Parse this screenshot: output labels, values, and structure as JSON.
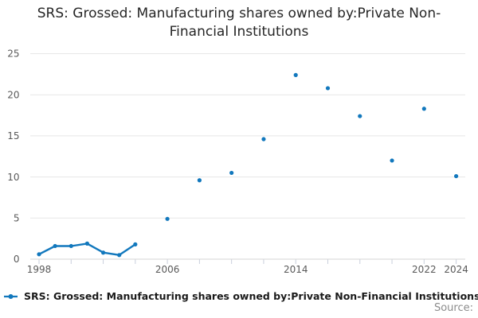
{
  "page": {
    "title": "SRS: Grossed: Manufacturing shares owned by:Private Non-Financial Institutions",
    "source_label": "Source:"
  },
  "legend": {
    "label": "SRS: Grossed: Manufacturing shares owned by:Private Non-Financial Institutions"
  },
  "colors": {
    "series": "#1278bd",
    "grid": "#e7e7e7",
    "axis_line": "#d6d6d6",
    "tick_mark": "#c9cfdc",
    "axis_label": "#595959",
    "title_text": "#262626",
    "legend_text": "#1a1a1a",
    "source_text": "#8c8c8c"
  },
  "chart_data": {
    "type": "line",
    "title": "SRS: Grossed: Manufacturing shares owned by:Private Non-Financial Institutions",
    "xlabel": "",
    "ylabel": "",
    "ylim": [
      0,
      25
    ],
    "yticks": [
      0,
      5,
      10,
      15,
      20,
      25
    ],
    "ytick_step": 5,
    "xticks": [
      1998,
      2000,
      2002,
      2004,
      2006,
      2008,
      2010,
      2012,
      2014,
      2016,
      2018,
      2020,
      2022,
      2024
    ],
    "xtick_labels_shown": [
      1998,
      2006,
      2014,
      2022,
      2024
    ],
    "grid": true,
    "legend_position": "bottom-left",
    "marker": "circle",
    "connect_max_year_gap": 1,
    "series": [
      {
        "name": "SRS: Grossed: Manufacturing shares owned by:Private Non-Financial Institutions",
        "points": [
          [
            1998,
            0.6
          ],
          [
            1999,
            1.6
          ],
          [
            2000,
            1.6
          ],
          [
            2001,
            1.9
          ],
          [
            2002,
            0.8
          ],
          [
            2003,
            0.5
          ],
          [
            2004,
            1.8
          ],
          [
            2006,
            4.9
          ],
          [
            2008,
            9.6
          ],
          [
            2010,
            10.5
          ],
          [
            2012,
            14.6
          ],
          [
            2014,
            22.4
          ],
          [
            2016,
            20.8
          ],
          [
            2018,
            17.4
          ],
          [
            2020,
            12.0
          ],
          [
            2022,
            18.3
          ],
          [
            2024,
            10.1
          ]
        ]
      }
    ]
  }
}
